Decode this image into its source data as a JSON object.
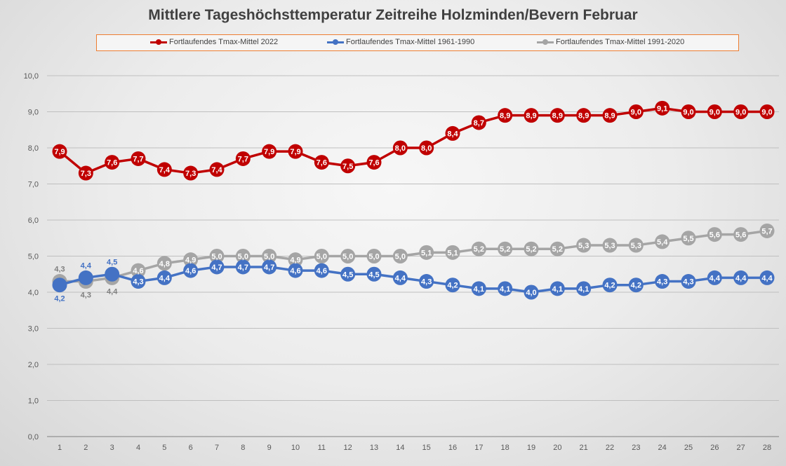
{
  "chart_data": {
    "type": "line",
    "title": "Mittlere Tageshöchsttemperatur Zeitreihe Holzminden/Bevern Februar",
    "xlabel": "",
    "ylabel": "",
    "x": [
      1,
      2,
      3,
      4,
      5,
      6,
      7,
      8,
      9,
      10,
      11,
      12,
      13,
      14,
      15,
      16,
      17,
      18,
      19,
      20,
      21,
      22,
      23,
      24,
      25,
      26,
      27,
      28
    ],
    "ylim": [
      0,
      10
    ],
    "yticks": [
      "0,0",
      "1,0",
      "2,0",
      "3,0",
      "4,0",
      "5,0",
      "6,0",
      "7,0",
      "8,0",
      "9,0",
      "10,0"
    ],
    "grid": true,
    "legend_position": "top",
    "series": [
      {
        "name": "Fortlaufendes Tmax-Mittel 2022",
        "color": "#c00000",
        "values": [
          7.9,
          7.3,
          7.6,
          7.7,
          7.4,
          7.3,
          7.4,
          7.7,
          7.9,
          7.9,
          7.6,
          7.5,
          7.6,
          8.0,
          8.0,
          8.4,
          8.7,
          8.9,
          8.9,
          8.9,
          8.9,
          8.9,
          9.0,
          9.1,
          9.0,
          9.0,
          9.0,
          9.0
        ]
      },
      {
        "name": "Fortlaufendes Tmax-Mittel 1961-1990",
        "color": "#4472c4",
        "values": [
          4.2,
          4.4,
          4.5,
          4.3,
          4.4,
          4.6,
          4.7,
          4.7,
          4.7,
          4.6,
          4.6,
          4.5,
          4.5,
          4.4,
          4.3,
          4.2,
          4.1,
          4.1,
          4.0,
          4.1,
          4.1,
          4.2,
          4.2,
          4.3,
          4.3,
          4.4,
          4.4,
          4.4
        ]
      },
      {
        "name": "Fortlaufendes Tmax-Mittel 1991-2020",
        "color": "#a5a5a5",
        "values": [
          4.3,
          4.3,
          4.4,
          4.6,
          4.8,
          4.9,
          5.0,
          5.0,
          5.0,
          4.9,
          5.0,
          5.0,
          5.0,
          5.0,
          5.1,
          5.1,
          5.2,
          5.2,
          5.2,
          5.2,
          5.3,
          5.3,
          5.3,
          5.4,
          5.5,
          5.6,
          5.6,
          5.7
        ]
      }
    ]
  }
}
